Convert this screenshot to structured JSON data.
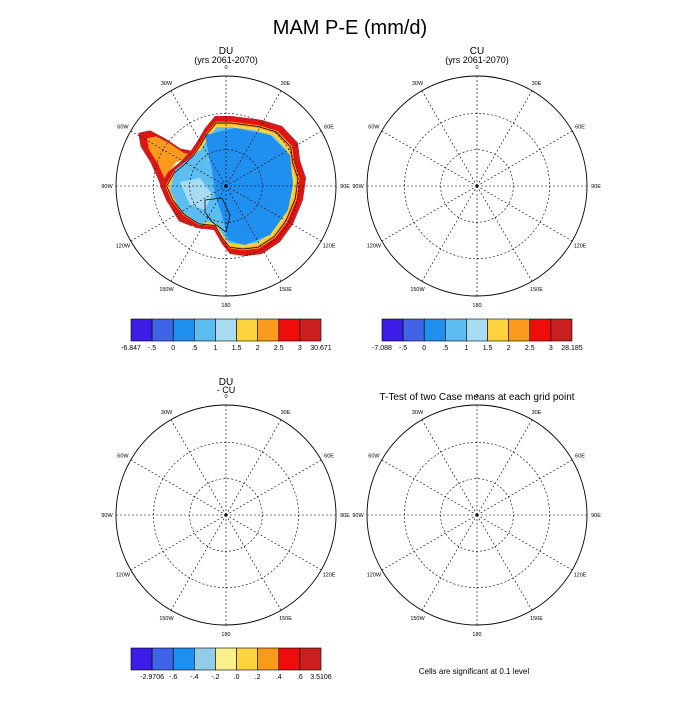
{
  "title": "MAM P-E (mm/d)",
  "colors": {
    "abs": [
      "#3b1de6",
      "#4064e6",
      "#1f8ff0",
      "#5cbdf0",
      "#a9dcf2",
      "#fcd23e",
      "#fb9a1f",
      "#ed0d0d",
      "#c91f1f"
    ],
    "diff": [
      "#3b1de6",
      "#4064e6",
      "#1f8ff0",
      "#93cce8",
      "#f7f08c",
      "#fcd23e",
      "#f89b1a",
      "#ed0d0d",
      "#c91f1f"
    ],
    "ttest": "#ed0d0d"
  },
  "chart_data": [
    {
      "type": "heatmap",
      "title": "DU",
      "subtitle": "(yrs 2061-2070)",
      "lon_labels": [
        "0",
        "30E",
        "60E",
        "90E",
        "120E",
        "150E",
        "180",
        "150W",
        "120W",
        "90W",
        "60W",
        "30W"
      ],
      "colorbar": {
        "labels": [
          "-6.847",
          "-.5",
          "0",
          ".5",
          "1",
          "1.5",
          "2",
          "2.5",
          "3",
          "30.671"
        ]
      }
    },
    {
      "type": "heatmap",
      "title": "CU",
      "subtitle": "(yrs 2061-2070)",
      "lon_labels": [
        "0",
        "30E",
        "60E",
        "90E",
        "120E",
        "150E",
        "180",
        "150W",
        "120W",
        "90W",
        "60W",
        "30W"
      ],
      "colorbar": {
        "labels": [
          "-7.088",
          "-.5",
          "0",
          ".5",
          "1",
          "1.5",
          "2",
          "2.5",
          "3",
          "28.185"
        ]
      }
    },
    {
      "type": "heatmap",
      "title": "DU",
      "subtitle": "- CU",
      "lon_labels": [
        "0",
        "30E",
        "60E",
        "90E",
        "120E",
        "150E",
        "180",
        "150W",
        "120W",
        "90W",
        "60W",
        "30W"
      ],
      "colorbar": {
        "labels": [
          "-2.9706",
          "-.6",
          "-.4",
          "-.2",
          ".0",
          ".2",
          ".4",
          ".6",
          "3.5106"
        ]
      }
    },
    {
      "type": "heatmap",
      "title": "T-Test of two Case means at each grid point",
      "lon_labels": [
        "0",
        "30E",
        "60E",
        "90E",
        "120E",
        "150E",
        "180",
        "150W",
        "120W",
        "90W",
        "60W",
        "30W"
      ],
      "note": "Cells are significant at 0.1 level"
    }
  ]
}
